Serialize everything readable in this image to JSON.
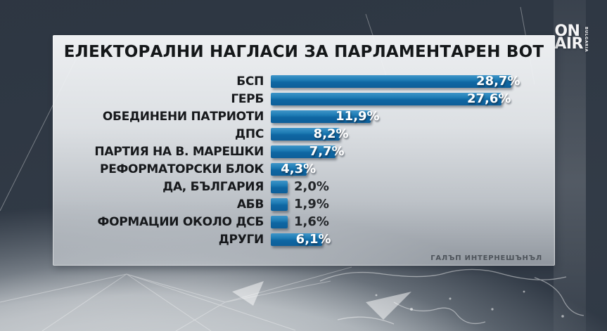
{
  "logo": {
    "line1": "ON",
    "line2": "AIR",
    "vertical": "BULGARIA"
  },
  "panel": {
    "title": "ЕЛЕКТОРАЛНИ НАГЛАСИ ЗА ПАРЛАМЕНТАРЕН ВОТ",
    "source": "ГАЛЪП ИНТЕРНЕШЪНЪЛ"
  },
  "chart_data": {
    "type": "bar",
    "orientation": "horizontal",
    "title": "ЕЛЕКТОРАЛНИ НАГЛАСИ ЗА ПАРЛАМЕНТАРЕН ВОТ",
    "source": "ГАЛЪП ИНТЕРНЕШЪНЪЛ",
    "unit": "%",
    "xlim": [
      0,
      30
    ],
    "grid": false,
    "legend": "none",
    "bar_color": "#1473ae",
    "categories": [
      "БСП",
      "ГЕРБ",
      "ОБЕДИНЕНИ ПАТРИОТИ",
      "ДПС",
      "ПАРТИЯ НА В. МАРЕШКИ",
      "РЕФОРМАТОРСКИ БЛОК",
      "ДА, БЪЛГАРИЯ",
      "АБВ",
      "ФОРМАЦИИ ОКОЛО ДСБ",
      "ДРУГИ"
    ],
    "values": [
      28.7,
      27.6,
      11.9,
      8.2,
      7.7,
      4.3,
      2.0,
      1.9,
      1.6,
      6.1
    ],
    "value_labels": [
      "28,7%",
      "27,6%",
      "11,9%",
      "8,2%",
      "7,7%",
      "4,3%",
      "2,0%",
      "1,9%",
      "1,6%",
      "6,1%"
    ]
  }
}
